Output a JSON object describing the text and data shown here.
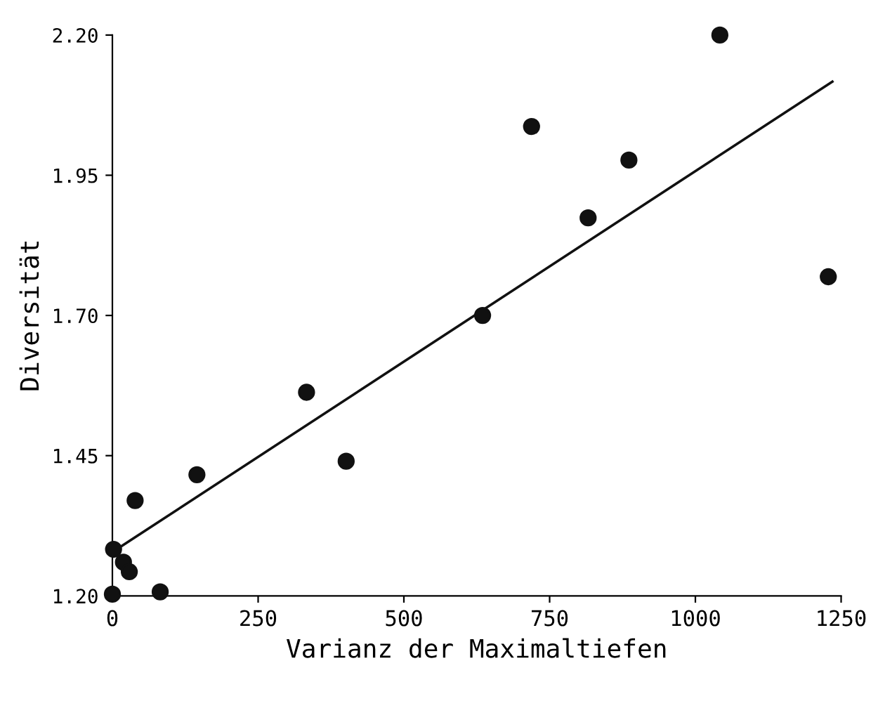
{
  "chart_data": {
    "type": "scatter",
    "xlabel": "Varianz der Maximaltiefen",
    "ylabel": "Diversität",
    "xlim": [
      0,
      1250
    ],
    "ylim": [
      1.2,
      2.2
    ],
    "xticks": [
      0,
      250,
      500,
      750,
      1000,
      1250
    ],
    "yticks": [
      {
        "value": 1.2,
        "label": "1.20"
      },
      {
        "value": 1.45,
        "label": "1.45"
      },
      {
        "value": 1.7,
        "label": "1.70"
      },
      {
        "value": 1.95,
        "label": "1.95"
      },
      {
        "value": 2.2,
        "label": "2.20"
      }
    ],
    "grid": false,
    "series": [
      {
        "marker": "circle",
        "color": "#111111",
        "x": [
          2,
          0,
          19,
          29,
          39,
          82,
          145,
          333,
          401,
          635,
          719,
          816,
          886,
          1042,
          1228
        ],
        "values": [
          1.283,
          1.203,
          1.26,
          1.243,
          1.37,
          1.207,
          1.416,
          1.563,
          1.44,
          1.7,
          2.037,
          1.874,
          1.977,
          2.2,
          1.769
        ]
      },
      {
        "type": "line",
        "marker": "none",
        "color": "#111111",
        "line_style": "solid",
        "x": [
          0,
          1235
        ],
        "values": [
          1.278,
          2.117
        ]
      }
    ]
  }
}
